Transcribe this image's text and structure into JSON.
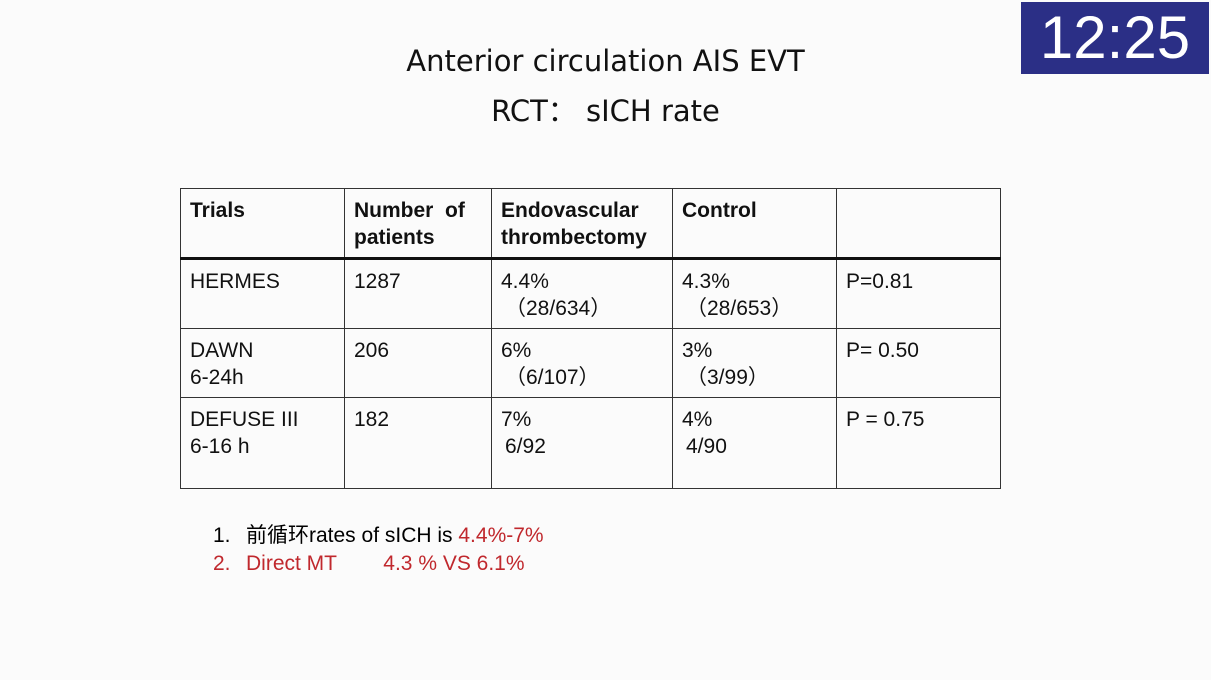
{
  "clock": "12:25",
  "title": {
    "line1": "Anterior circulation AIS EVT",
    "line2": "RCT： sICH rate"
  },
  "table": {
    "headers": [
      "Trials",
      "Number  of patients",
      "Endovascular thrombectomy",
      "Control",
      ""
    ],
    "rows": [
      {
        "trial": "HERMES",
        "trial_sub": "",
        "patients": "1287",
        "evt_rate": "4.4%",
        "evt_count": "（28/634）",
        "control_rate": "4.3%",
        "control_count": "（28/653）",
        "p": "P=0.81"
      },
      {
        "trial": "DAWN",
        "trial_sub": "6-24h",
        "patients": "206",
        "evt_rate": "6%",
        "evt_count": "（6/107）",
        "control_rate": "3%",
        "control_count": "（3/99）",
        "p": "P= 0.50"
      },
      {
        "trial": "DEFUSE III",
        "trial_sub": "6-16 h",
        "patients": "182",
        "evt_rate": "7%",
        "evt_count": "6/92",
        "control_rate": "4%",
        "control_count": "4/90",
        "p": "P = 0.75"
      }
    ]
  },
  "notes": [
    {
      "num": "1.",
      "text_black": "前循环rates of sICH is ",
      "text_red": "4.4%-7%"
    },
    {
      "num": "2.",
      "text_red": "Direct MT        4.3 % VS 6.1%"
    }
  ],
  "colors": {
    "clock_bg": "#2b2f86",
    "accent_red": "#c0282d"
  }
}
